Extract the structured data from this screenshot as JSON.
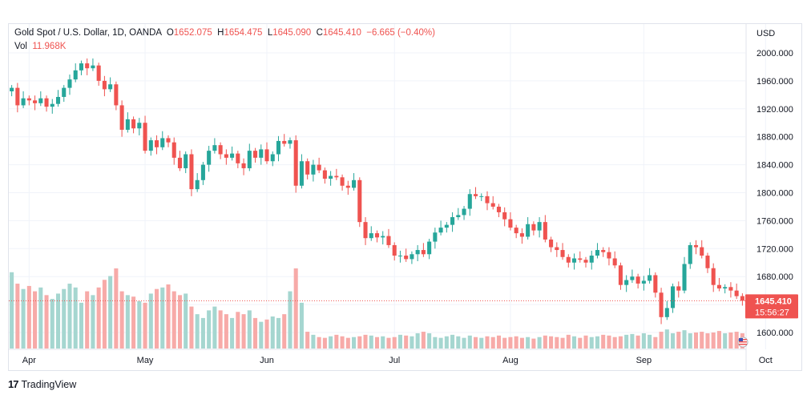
{
  "legend": {
    "symbol": "Gold Spot / U.S. Dollar, 1D, OANDA",
    "o_label": "O",
    "o_value": "1652.075",
    "h_label": "H",
    "h_value": "1654.475",
    "l_label": "L",
    "l_value": "1645.090",
    "c_label": "C",
    "c_value": "1645.410",
    "change": "−6.665 (−0.40%)",
    "vol_label": "Vol",
    "vol_value": "11.968K"
  },
  "price_axis": {
    "currency": "USD",
    "last_price_label": "1645.410",
    "countdown_label": "15:56:27"
  },
  "branding": {
    "logo_text": "TradingView"
  },
  "colors": {
    "up": "#26a69a",
    "down": "#ef5350",
    "up_volume": "#a5d6d0",
    "down_volume": "#f7aaa8"
  },
  "chart_data": {
    "type": "candlestick",
    "title": "Gold Spot / U.S. Dollar, 1D, OANDA",
    "ylabel": "USD",
    "ylim": [
      1570,
      2030
    ],
    "y_ticks": [
      1600,
      1640,
      1680,
      1720,
      1760,
      1800,
      1840,
      1880,
      1920,
      1960,
      2000
    ],
    "y_tick_labels": [
      "1600.000",
      "1640.000",
      "1680.000",
      "1720.000",
      "1760.000",
      "1800.000",
      "1840.000",
      "1880.000",
      "1920.000",
      "1960.000",
      "2000.000"
    ],
    "month_labels": [
      {
        "label": "Apr",
        "index": 3
      },
      {
        "label": "May",
        "index": 23
      },
      {
        "label": "Jun",
        "index": 44
      },
      {
        "label": "Jul",
        "index": 66
      },
      {
        "label": "Aug",
        "index": 86
      },
      {
        "label": "Sep",
        "index": 109
      },
      {
        "label": "Oct",
        "index": 130
      }
    ],
    "last_price": 1645.41,
    "closes": [
      1950,
      1925,
      1935,
      1932,
      1928,
      1935,
      1923,
      1927,
      1937,
      1950,
      1962,
      1975,
      1985,
      1978,
      1982,
      1960,
      1948,
      1955,
      1925,
      1890,
      1905,
      1892,
      1900,
      1860,
      1875,
      1865,
      1878,
      1872,
      1850,
      1835,
      1855,
      1805,
      1818,
      1840,
      1860,
      1868,
      1855,
      1850,
      1856,
      1842,
      1835,
      1860,
      1850,
      1862,
      1845,
      1855,
      1874,
      1870,
      1875,
      1810,
      1845,
      1826,
      1840,
      1832,
      1820,
      1824,
      1822,
      1810,
      1807,
      1818,
      1758,
      1735,
      1742,
      1736,
      1738,
      1725,
      1710,
      1710,
      1705,
      1712,
      1718,
      1712,
      1730,
      1743,
      1750,
      1754,
      1765,
      1768,
      1777,
      1798,
      1795,
      1795,
      1785,
      1780,
      1772,
      1762,
      1750,
      1742,
      1737,
      1755,
      1746,
      1758,
      1733,
      1722,
      1718,
      1708,
      1700,
      1706,
      1704,
      1700,
      1710,
      1718,
      1715,
      1706,
      1696,
      1668,
      1675,
      1680,
      1670,
      1674,
      1682,
      1657,
      1622,
      1635,
      1666,
      1660,
      1698,
      1725,
      1722,
      1710,
      1692,
      1668,
      1663,
      1665,
      1660,
      1652,
      1645.41
    ],
    "opens": [
      1945,
      1950,
      1925,
      1935,
      1932,
      1928,
      1935,
      1923,
      1927,
      1937,
      1950,
      1962,
      1975,
      1985,
      1978,
      1982,
      1960,
      1948,
      1955,
      1925,
      1890,
      1905,
      1892,
      1900,
      1860,
      1875,
      1865,
      1878,
      1872,
      1850,
      1835,
      1855,
      1805,
      1818,
      1840,
      1860,
      1868,
      1855,
      1850,
      1856,
      1842,
      1835,
      1860,
      1850,
      1862,
      1845,
      1855,
      1874,
      1870,
      1875,
      1810,
      1845,
      1826,
      1840,
      1832,
      1820,
      1824,
      1822,
      1810,
      1807,
      1818,
      1758,
      1735,
      1742,
      1736,
      1738,
      1725,
      1710,
      1710,
      1705,
      1712,
      1718,
      1712,
      1730,
      1743,
      1750,
      1754,
      1765,
      1768,
      1777,
      1798,
      1795,
      1795,
      1785,
      1780,
      1772,
      1762,
      1750,
      1742,
      1737,
      1755,
      1746,
      1758,
      1733,
      1722,
      1718,
      1708,
      1700,
      1706,
      1704,
      1700,
      1710,
      1718,
      1715,
      1706,
      1696,
      1668,
      1675,
      1680,
      1670,
      1674,
      1682,
      1657,
      1622,
      1635,
      1666,
      1660,
      1698,
      1725,
      1722,
      1710,
      1692,
      1668,
      1663,
      1665,
      1660,
      1652.075
    ],
    "volumes": [
      100,
      85,
      78,
      82,
      75,
      80,
      70,
      65,
      72,
      78,
      85,
      80,
      60,
      75,
      70,
      80,
      90,
      95,
      105,
      75,
      70,
      68,
      62,
      60,
      72,
      78,
      80,
      84,
      75,
      70,
      72,
      55,
      45,
      40,
      50,
      55,
      50,
      45,
      40,
      48,
      45,
      50,
      40,
      35,
      38,
      42,
      40,
      45,
      75,
      105,
      60,
      22,
      18,
      15,
      14,
      16,
      18,
      16,
      14,
      15,
      16,
      18,
      17,
      15,
      16,
      14,
      15,
      18,
      17,
      16,
      20,
      22,
      20,
      15,
      14,
      16,
      18,
      16,
      14,
      17,
      15,
      14,
      16,
      15,
      17,
      14,
      15,
      16,
      14,
      15,
      13,
      15,
      17,
      16,
      15,
      14,
      18,
      16,
      14,
      17,
      15,
      16,
      18,
      17,
      15,
      16,
      18,
      19,
      17,
      20,
      18,
      15,
      22,
      25,
      20,
      22,
      24,
      20,
      21,
      22,
      20,
      21,
      23,
      20,
      21,
      22,
      20
    ]
  }
}
